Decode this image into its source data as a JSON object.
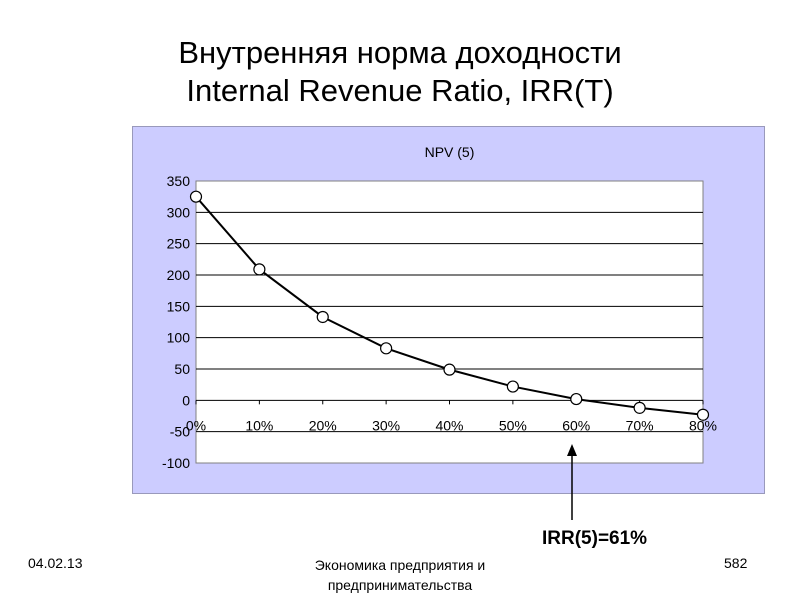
{
  "slide": {
    "title_line1": "Внутренняя норма доходности",
    "title_line2": "Internal Revenue Ratio, IRR(T)",
    "date": "04.02.13",
    "course_line1": "Экономика предприятия и",
    "course_line2": "предпринимательства",
    "page_number": "582",
    "annotation": "IRR(5)=61%"
  },
  "colors": {
    "chart_background": "#ccccff",
    "plot_background": "#ffffff",
    "line": "#000000",
    "marker_fill": "#ffffff"
  },
  "chart_data": {
    "type": "line",
    "title": "NPV (5)",
    "x": [
      "0%",
      "10%",
      "20%",
      "30%",
      "40%",
      "50%",
      "60%",
      "70%",
      "80%"
    ],
    "x_values": [
      0,
      10,
      20,
      30,
      40,
      50,
      60,
      70,
      80
    ],
    "series": [
      {
        "values": [
          325,
          209,
          133,
          83,
          49,
          22,
          2,
          -12,
          -23
        ]
      }
    ],
    "ylim": [
      -100,
      350
    ],
    "y_ticks": [
      "350",
      "300",
      "250",
      "200",
      "150",
      "100",
      "50",
      "0",
      "-50",
      "-100"
    ],
    "y_tick_values": [
      350,
      300,
      250,
      200,
      150,
      100,
      50,
      0,
      -50,
      -100
    ],
    "grid": "horizontal",
    "legend": "none",
    "annotation_x": 61
  }
}
